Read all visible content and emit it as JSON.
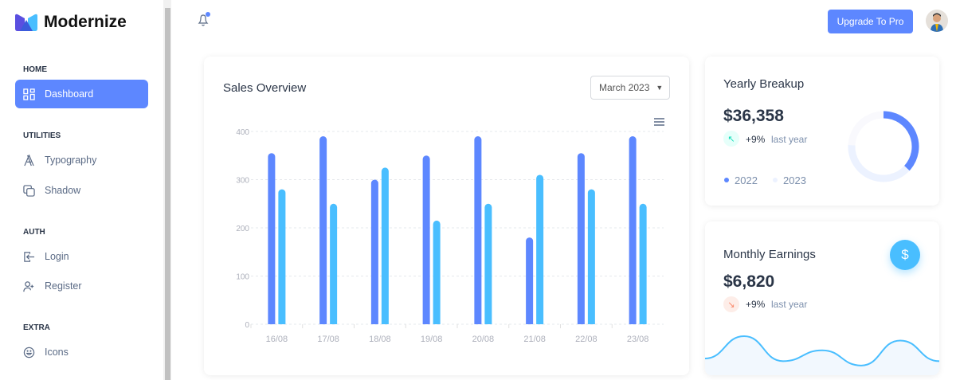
{
  "brand": {
    "name": "Modernize"
  },
  "sidebar": {
    "sections": [
      {
        "title": "HOME",
        "items": [
          {
            "label": "Dashboard",
            "icon": "layout-dashboard-icon",
            "active": true
          }
        ]
      },
      {
        "title": "UTILITIES",
        "items": [
          {
            "label": "Typography",
            "icon": "typography-icon"
          },
          {
            "label": "Shadow",
            "icon": "copy-icon"
          }
        ]
      },
      {
        "title": "AUTH",
        "items": [
          {
            "label": "Login",
            "icon": "login-icon"
          },
          {
            "label": "Register",
            "icon": "user-plus-icon"
          }
        ]
      },
      {
        "title": "EXTRA",
        "items": [
          {
            "label": "Icons",
            "icon": "mood-happy-icon"
          }
        ]
      }
    ]
  },
  "header": {
    "upgrade_label": "Upgrade To Pro",
    "notification_dot": true
  },
  "sales": {
    "title": "Sales Overview",
    "period": "March 2023"
  },
  "chart_data": {
    "type": "bar",
    "categories": [
      "16/08",
      "17/08",
      "18/08",
      "19/08",
      "20/08",
      "21/08",
      "22/08",
      "23/08"
    ],
    "series": [
      {
        "values": [
          355,
          390,
          300,
          350,
          390,
          180,
          355,
          390
        ],
        "color": "#5d87ff"
      },
      {
        "values": [
          280,
          250,
          325,
          215,
          250,
          310,
          280,
          250
        ],
        "color": "#49beff"
      }
    ],
    "yticks": [
      0,
      100,
      200,
      300,
      400
    ],
    "ylim": [
      0,
      400
    ],
    "grid": true
  },
  "yearly": {
    "title": "Yearly Breakup",
    "amount": "$36,358",
    "change": "+9%",
    "change_suffix": "last year",
    "legend": [
      "2022",
      "2023"
    ],
    "donut": [
      38,
      40,
      25
    ],
    "donut_colors": [
      "#5d87ff",
      "#ecf2ff",
      "#f9f9fd"
    ]
  },
  "monthly": {
    "title": "Monthly Earnings",
    "amount": "$6,820",
    "change": "+9%",
    "change_suffix": "last year",
    "sparkline": [
      25,
      66,
      20,
      40,
      12,
      58,
      20
    ]
  },
  "colors": {
    "primary": "#5d87ff",
    "secondary": "#49beff",
    "success_light": "#e6fffa",
    "error_light": "#fdede8"
  }
}
